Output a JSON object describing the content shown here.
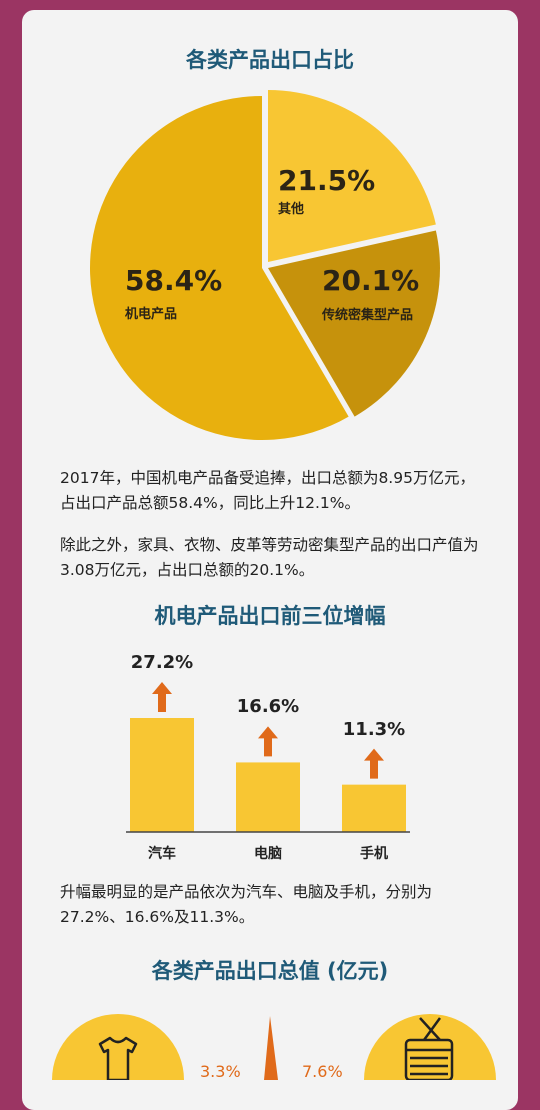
{
  "pie_title": "各类产品出口占比",
  "bar_title": "机电产品出口前三位增幅",
  "bottom_title": "各类产品出口总值 (亿元)",
  "paragraphs": {
    "p1": "2017年，中国机电产品备受追捧，出口总额为8.95万亿元，占出口产品总额58.4%，同比上升12.1%。",
    "p2": "除此之外，家具、衣物、皮革等劳动密集型产品的出口产值为3.08万亿元，占出口总额的20.1%。",
    "p3": "升幅最明显的是产品依次为汽车、电脑及手机，分别为27.2%、16.6%及11.3%。"
  },
  "bottom_partial": {
    "left_pct": "3.3%",
    "right_pct": "7.6%"
  },
  "colors": {
    "background": "#9b3563",
    "title": "#1f5a78",
    "gold": "#e8b00e",
    "light_gold": "#f8c633",
    "dark_gold": "#c6920c",
    "bar": "#f8c633",
    "arrow": "#e06a1a"
  },
  "icons": [
    "tshirt-icon",
    "spool-icon"
  ],
  "chart_data": [
    {
      "type": "pie",
      "title": "各类产品出口占比",
      "slices": [
        {
          "label": "机电产品",
          "value": 58.4,
          "display": "58.4%",
          "color": "#e8b00e"
        },
        {
          "label": "其他",
          "value": 21.5,
          "display": "21.5%",
          "color": "#f8c633"
        },
        {
          "label": "传统密集型产品",
          "value": 20.1,
          "display": "20.1%",
          "color": "#c6920c"
        }
      ]
    },
    {
      "type": "bar",
      "title": "机电产品出口前三位增幅",
      "categories": [
        "汽车",
        "电脑",
        "手机"
      ],
      "values": [
        27.2,
        16.6,
        11.3
      ],
      "labels": [
        "27.2%",
        "16.6%",
        "11.3%"
      ]
    }
  ]
}
